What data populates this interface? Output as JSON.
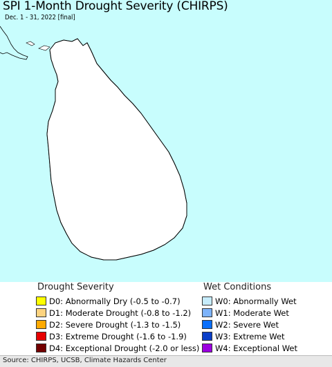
{
  "map": {
    "title": "SPI 1-Month Drought Severity (CHIRPS)",
    "subtitle": "Dec. 1 - 31, 2022 [final]",
    "colors": {
      "ocean": "#c8fdfd",
      "land": "#ffffff",
      "W0": "#c6ecfc",
      "W1": "#7db3fa"
    }
  },
  "legend": {
    "drought": {
      "heading": "Drought Severity",
      "items": [
        {
          "label": "D0: Abnormally Dry (-0.5 to -0.7)",
          "color": "#ffff00"
        },
        {
          "label": "D1: Moderate Drought (-0.8 to -1.2)",
          "color": "#fcd37f"
        },
        {
          "label": "D2: Severe Drought (-1.3 to -1.5)",
          "color": "#ffaa00"
        },
        {
          "label": "D3: Extreme Drought (-1.6 to -1.9)",
          "color": "#e60000"
        },
        {
          "label": "D4: Exceptional Drought (-2.0 or less)",
          "color": "#730000"
        }
      ]
    },
    "wet": {
      "heading": "Wet Conditions",
      "items": [
        {
          "label": "W0: Abnormally Wet",
          "color": "#c6ecfc"
        },
        {
          "label": "W1: Moderate Wet",
          "color": "#7db3fa"
        },
        {
          "label": "W2: Severe Wet",
          "color": "#0a6ffc"
        },
        {
          "label": "W3: Extreme Wet",
          "color": "#0a3ec8"
        },
        {
          "label": "W4: Exceptional Wet",
          "color": "#9b00e0"
        }
      ]
    }
  },
  "credit": "Source: CHIRPS, UCSB, Climate Hazards Center"
}
